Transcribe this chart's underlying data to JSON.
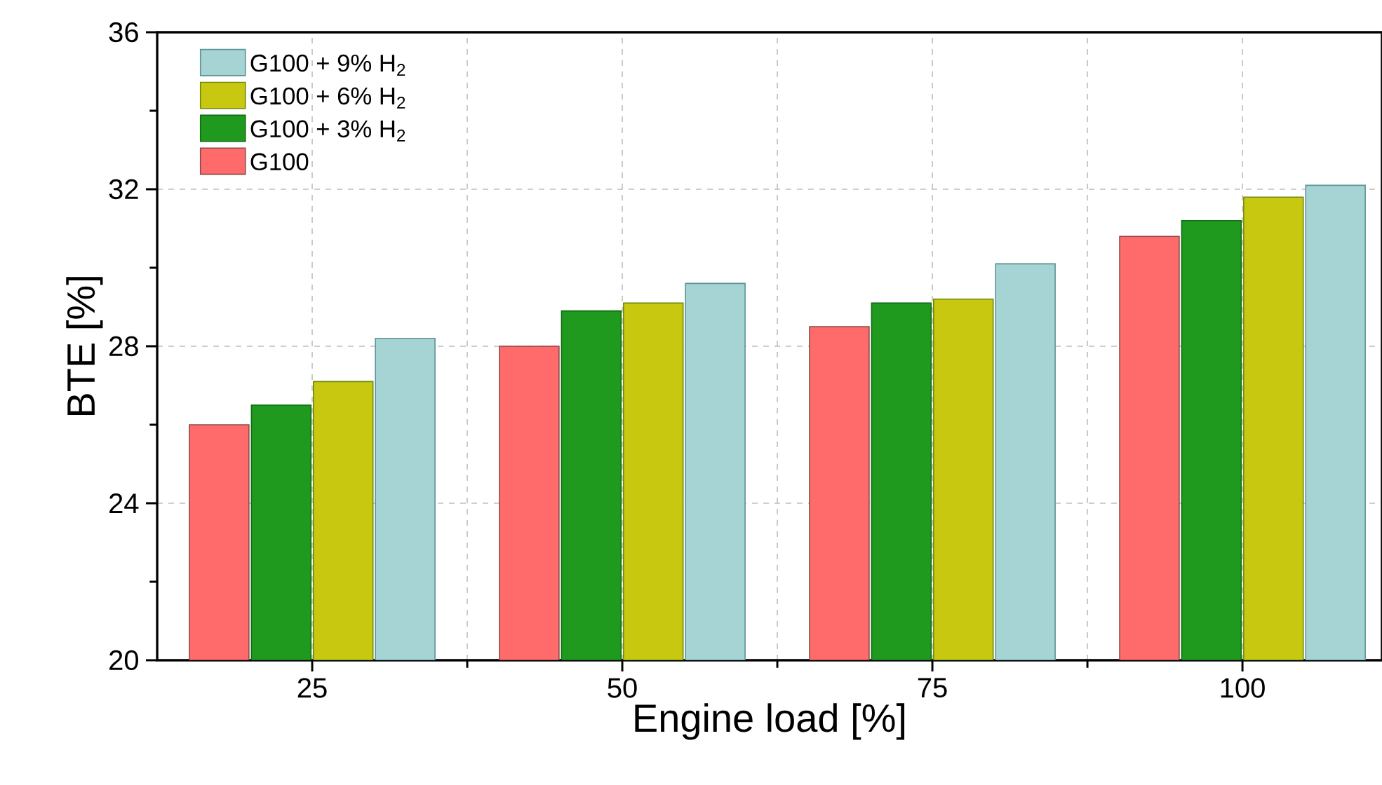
{
  "chart_data": {
    "type": "bar",
    "xlabel": "Engine load [%]",
    "ylabel": "BTE [%]",
    "categories": [
      "25",
      "50",
      "75",
      "100"
    ],
    "series": [
      {
        "name": "G100",
        "color": "#ff6b6b",
        "values": [
          26.0,
          28.0,
          28.5,
          30.8
        ]
      },
      {
        "name": "G100 + 3% H$_{2}$",
        "color": "#1f9a1f",
        "values": [
          26.5,
          28.9,
          29.1,
          31.2
        ]
      },
      {
        "name": "G100 + 6% H$_{2}$",
        "color": "#c8c810",
        "values": [
          27.1,
          29.1,
          29.2,
          31.8
        ]
      },
      {
        "name": "G100 + 9% H$_{2}$",
        "color": "#a6d3d3",
        "values": [
          28.2,
          29.6,
          30.1,
          32.1
        ]
      }
    ],
    "ylim": [
      20,
      36
    ],
    "yticks": [
      20,
      24,
      28,
      32,
      36
    ],
    "grid": true,
    "legend": "top left"
  }
}
